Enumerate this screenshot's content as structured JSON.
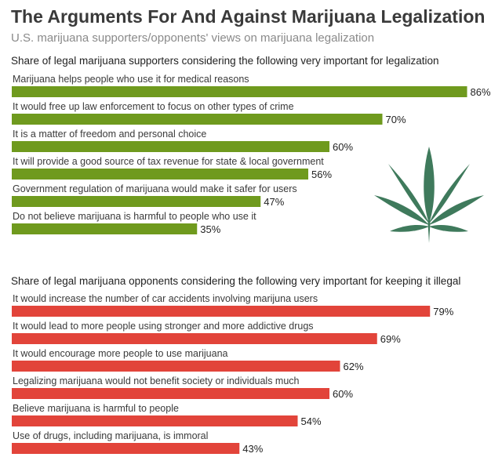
{
  "header": {
    "title": "The Arguments For And Against Marijuana Legalization",
    "subtitle": "U.S. marijuana supporters/opponents' views on marijuana legalization"
  },
  "chart_data": [
    {
      "type": "bar",
      "orientation": "horizontal",
      "title": "Share of legal marijuana supporters considering the following very important for legalization",
      "color": "#6f9a1e",
      "xlim": [
        0,
        100
      ],
      "unit": "%",
      "categories": [
        "Marijuana helps people who use it for medical reasons",
        "It would free up law enforcement to focus on other types of crime",
        "It is a matter of freedom and personal choice",
        "It will provide a good source of tax revenue for state & local government",
        "Government regulation of marijuana would make it safer for users",
        "Do not believe marijuana is harmful to people who use it"
      ],
      "values": [
        86,
        70,
        60,
        56,
        47,
        35
      ],
      "value_labels": [
        "86%",
        "70%",
        "60%",
        "56%",
        "47%",
        "35%"
      ]
    },
    {
      "type": "bar",
      "orientation": "horizontal",
      "title": "Share of legal marijuana opponents considering the following very important for keeping it illegal",
      "color": "#e2443a",
      "xlim": [
        0,
        100
      ],
      "unit": "%",
      "categories": [
        "It would increase the number of car accidents involving marijuna users",
        "It would lead to more people using stronger and more addictive drugs",
        "It would encourage more people to use marijuana",
        "Legalizing marijuana would not benefit society or individuals much",
        "Believe marijuana is harmful to people",
        "Use of drugs, including marijuana, is immoral"
      ],
      "values": [
        79,
        69,
        62,
        60,
        54,
        43
      ],
      "value_labels": [
        "79%",
        "69%",
        "62%",
        "60%",
        "54%",
        "43%"
      ]
    }
  ],
  "decoration": {
    "icon": "cannabis-leaf-icon",
    "color": "#3f7a5c"
  }
}
